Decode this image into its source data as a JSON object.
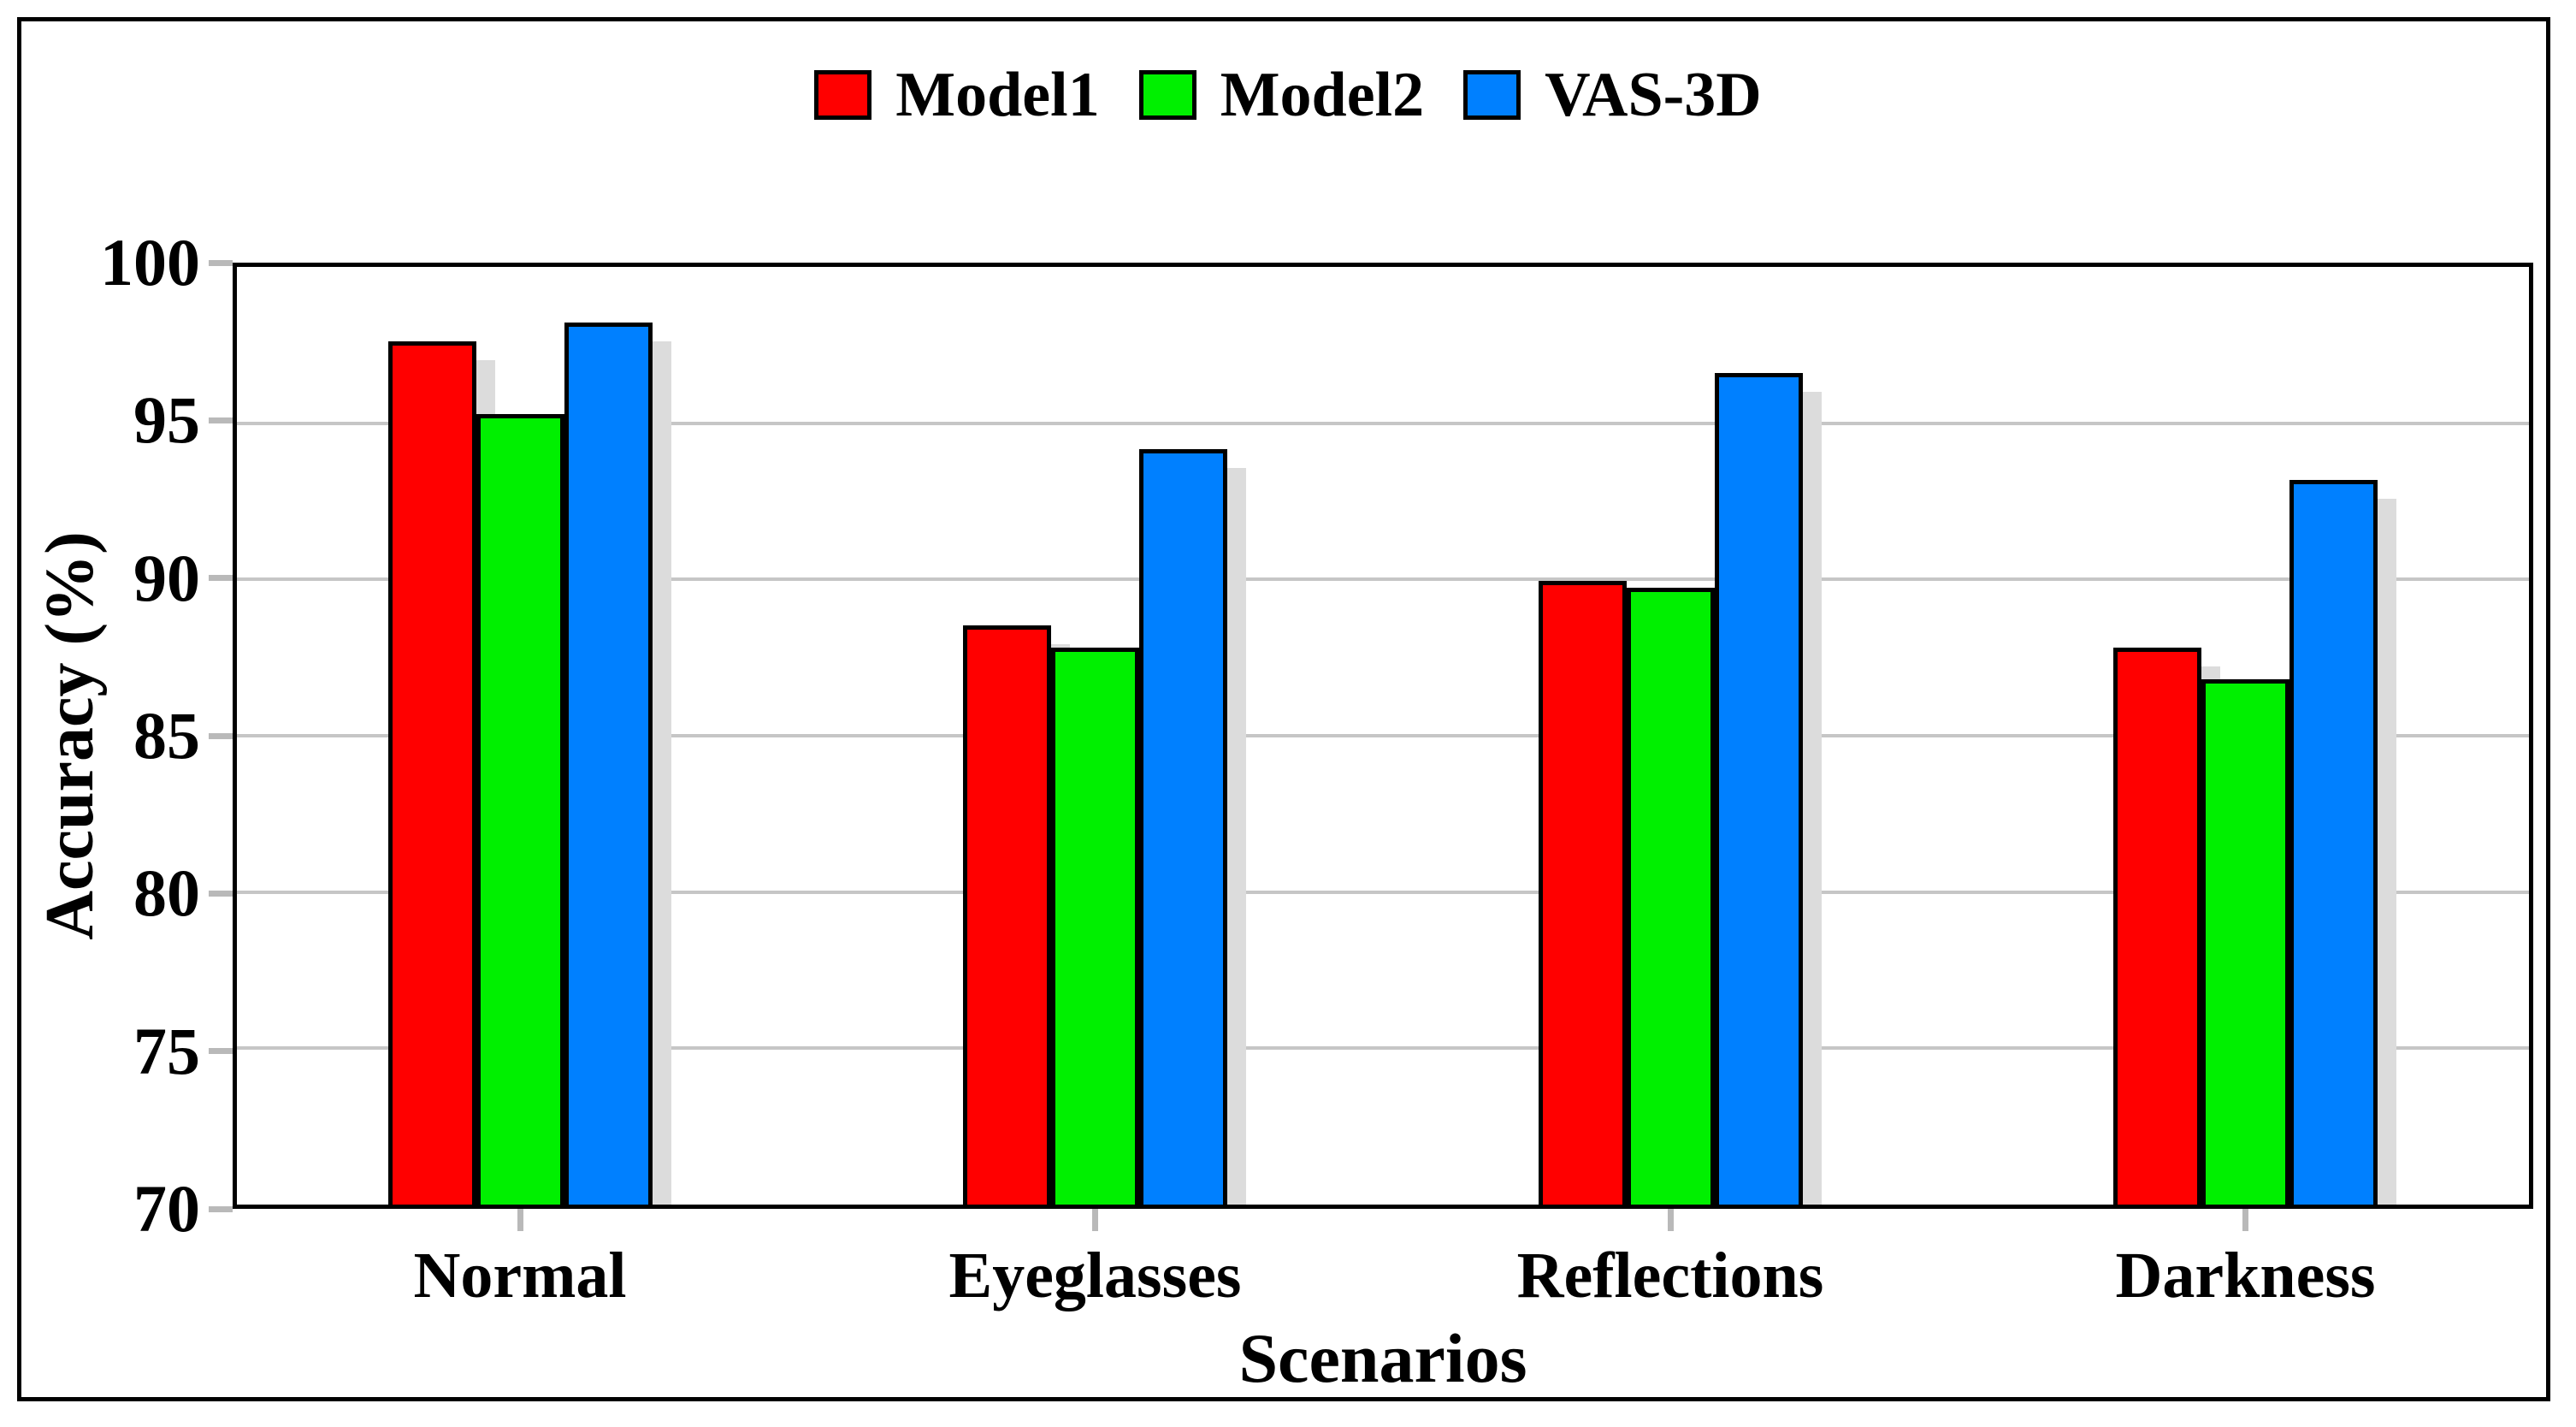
{
  "chart_data": {
    "type": "bar",
    "title": "",
    "categories": [
      "Normal",
      "Eyeglasses",
      "Reflections",
      "Darkness"
    ],
    "series": [
      {
        "name": "Model1",
        "color": "#ff0000",
        "values": [
          97.5,
          88.5,
          89.9,
          87.8
        ]
      },
      {
        "name": "Model2",
        "color": "#00f000",
        "values": [
          95.2,
          87.8,
          89.7,
          86.8
        ]
      },
      {
        "name": "VAS-3D",
        "color": "#0080ff",
        "values": [
          98.1,
          94.1,
          96.5,
          93.1
        ]
      }
    ],
    "xlabel": "Scenarios",
    "ylabel": "Accuracy (%)",
    "ylim": [
      70,
      100
    ],
    "yticks": [
      70,
      75,
      80,
      85,
      90,
      95,
      100
    ],
    "grid": "horizontal",
    "legend_position": "top-center",
    "styles": {
      "bar_shadow_color": "#dcdcdc",
      "gridline_color": "#c6c6c6",
      "tick_color": "#b9b9b9",
      "bar_border_color": "#000000",
      "frame_border_color": "#000000"
    }
  }
}
